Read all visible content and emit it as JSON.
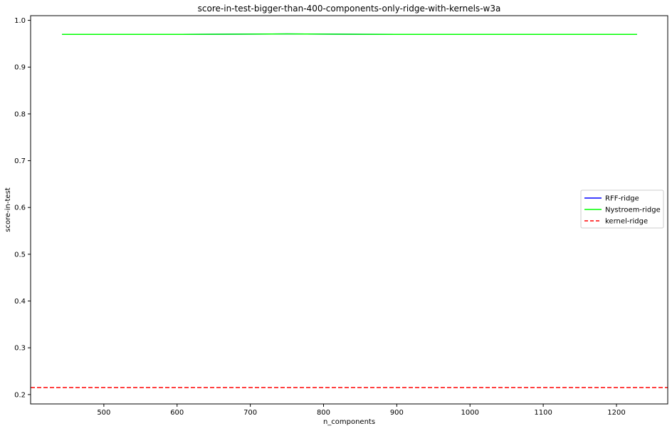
{
  "chart_data": {
    "type": "line",
    "title": "score-in-test-bigger-than-400-components-only-ridge-with-kernels-w3a",
    "xlabel": "n_components",
    "ylabel": "score-in-test",
    "xlim": [
      400,
      1270
    ],
    "ylim": [
      0.18,
      1.01
    ],
    "xticks": [
      500,
      600,
      700,
      800,
      900,
      1000,
      1100,
      1200
    ],
    "yticks": [
      0.2,
      0.3,
      0.4,
      0.5,
      0.6,
      0.7,
      0.8,
      0.9,
      1.0
    ],
    "xtick_labels": [
      "500",
      "600",
      "700",
      "800",
      "900",
      "1000",
      "1100",
      "1200"
    ],
    "ytick_labels": [
      "0.2",
      "0.3",
      "0.4",
      "0.5",
      "0.6",
      "0.7",
      "0.8",
      "0.9",
      "1.0"
    ],
    "grid": false,
    "legend_position": "center-right",
    "series": [
      {
        "name": "RFF-ridge",
        "color": "#0000ff",
        "style": "solid",
        "x": [
          443,
          600,
          750,
          900,
          1050,
          1228
        ],
        "y": [
          0.97,
          0.97,
          0.971,
          0.97,
          0.97,
          0.97
        ]
      },
      {
        "name": "Nystroem-ridge",
        "color": "#00ff00",
        "style": "solid",
        "x": [
          443,
          600,
          750,
          900,
          1050,
          1228
        ],
        "y": [
          0.97,
          0.97,
          0.971,
          0.97,
          0.97,
          0.97
        ]
      },
      {
        "name": "kernel-ridge",
        "color": "#ff0000",
        "style": "dashed",
        "x": [
          400,
          1270
        ],
        "y": [
          0.215,
          0.215
        ]
      }
    ]
  }
}
